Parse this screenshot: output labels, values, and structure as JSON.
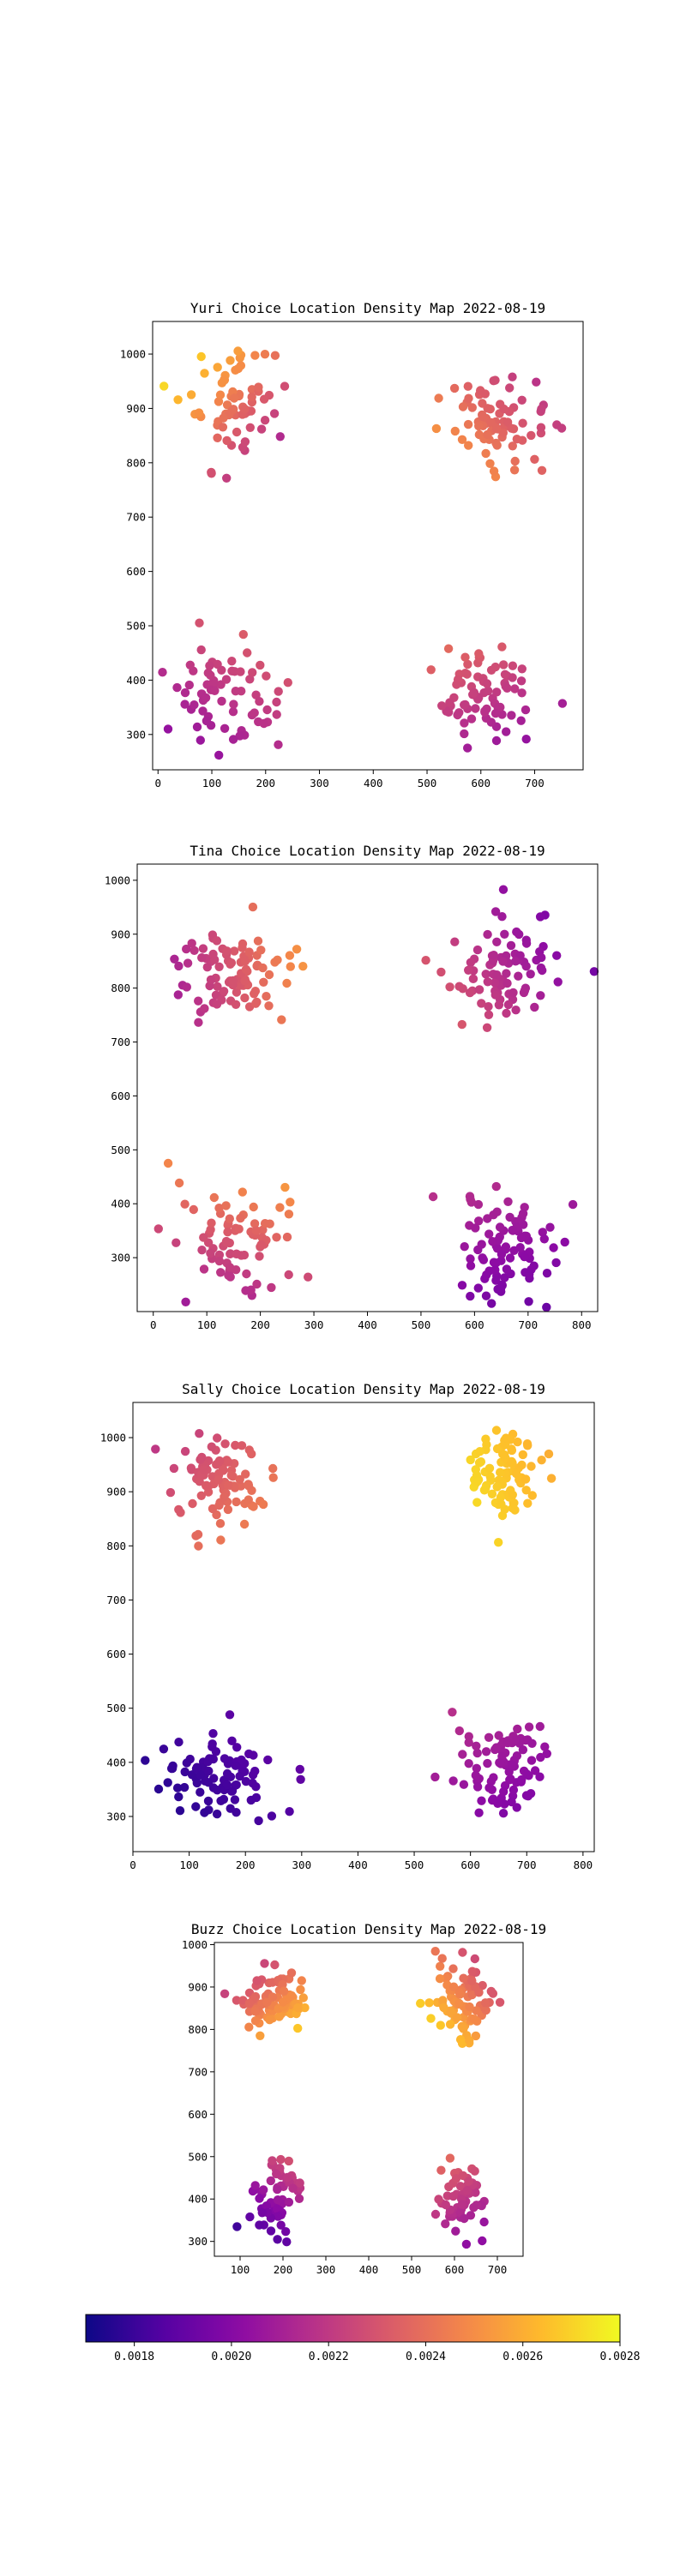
{
  "colorbar": {
    "colormap": "plasma",
    "range": [
      0.0017,
      0.0028
    ],
    "ticks": [
      "0.0018",
      "0.0020",
      "0.0022",
      "0.0024",
      "0.0026",
      "0.0028"
    ]
  },
  "chart_data": [
    {
      "type": "scatter",
      "title": "Yuri Choice Location Density Map 2022-08-19",
      "xlim": [
        -10,
        790
      ],
      "ylim": [
        235,
        1060
      ],
      "xticks": [
        0,
        100,
        200,
        300,
        400,
        500,
        600,
        700
      ],
      "yticks": [
        300,
        400,
        500,
        600,
        700,
        800,
        900,
        1000
      ],
      "clusters": [
        {
          "cx": 140,
          "cy": 900,
          "sx": 45,
          "sy": 55,
          "n": 70,
          "seed": 11,
          "c": [
            0.92,
            0.35
          ],
          "cdir": [
            0.7,
            -0.7
          ]
        },
        {
          "cx": 630,
          "cy": 880,
          "sx": 45,
          "sy": 40,
          "n": 80,
          "seed": 12,
          "c": [
            0.38,
            0.8
          ],
          "cdir": [
            -0.6,
            -0.5
          ]
        },
        {
          "cx": 130,
          "cy": 380,
          "sx": 50,
          "sy": 50,
          "n": 70,
          "seed": 13,
          "c": [
            0.3,
            0.6
          ],
          "cdir": [
            0.5,
            0.8
          ]
        },
        {
          "cx": 610,
          "cy": 370,
          "sx": 45,
          "sy": 45,
          "n": 80,
          "seed": 14,
          "c": [
            0.3,
            0.62
          ],
          "cdir": [
            -0.4,
            0.9
          ]
        }
      ]
    },
    {
      "type": "scatter",
      "title": "Tina Choice Location Density Map 2022-08-19",
      "xlim": [
        -30,
        830
      ],
      "ylim": [
        200,
        1030
      ],
      "xticks": [
        0,
        100,
        200,
        300,
        400,
        500,
        600,
        700,
        800
      ],
      "yticks": [
        300,
        400,
        500,
        600,
        700,
        800,
        900,
        1000
      ],
      "clusters": [
        {
          "cx": 160,
          "cy": 830,
          "sx": 55,
          "sy": 40,
          "n": 90,
          "seed": 21,
          "c": [
            0.3,
            0.82
          ],
          "cdir": [
            0.8,
            0.1
          ]
        },
        {
          "cx": 660,
          "cy": 830,
          "sx": 55,
          "sy": 45,
          "n": 90,
          "seed": 22,
          "c": [
            0.22,
            0.58
          ],
          "cdir": [
            -0.8,
            -0.4
          ]
        },
        {
          "cx": 160,
          "cy": 340,
          "sx": 50,
          "sy": 50,
          "n": 80,
          "seed": 23,
          "c": [
            0.35,
            0.78
          ],
          "cdir": [
            0.3,
            0.9
          ]
        },
        {
          "cx": 660,
          "cy": 320,
          "sx": 50,
          "sy": 50,
          "n": 90,
          "seed": 24,
          "c": [
            0.2,
            0.42
          ],
          "cdir": [
            -0.3,
            0.9
          ]
        }
      ]
    },
    {
      "type": "scatter",
      "title": "Sally Choice Location Density Map 2022-08-19",
      "xlim": [
        0,
        820
      ],
      "ylim": [
        235,
        1065
      ],
      "xticks": [
        0,
        100,
        200,
        300,
        400,
        500,
        600,
        700,
        800
      ],
      "yticks": [
        300,
        400,
        500,
        600,
        700,
        800,
        900,
        1000
      ],
      "clusters": [
        {
          "cx": 160,
          "cy": 920,
          "sx": 40,
          "sy": 40,
          "n": 90,
          "seed": 31,
          "c": [
            0.45,
            0.72
          ],
          "cdir": [
            0.6,
            -0.5
          ]
        },
        {
          "cx": 660,
          "cy": 930,
          "sx": 35,
          "sy": 40,
          "n": 90,
          "seed": 32,
          "c": [
            0.78,
            0.98
          ],
          "cdir": [
            -0.6,
            -0.2
          ]
        },
        {
          "cx": 150,
          "cy": 370,
          "sx": 50,
          "sy": 40,
          "n": 90,
          "seed": 33,
          "c": [
            0.02,
            0.2
          ],
          "cdir": [
            0.6,
            0.4
          ]
        },
        {
          "cx": 660,
          "cy": 390,
          "sx": 40,
          "sy": 45,
          "n": 90,
          "seed": 34,
          "c": [
            0.22,
            0.42
          ],
          "cdir": [
            -0.4,
            0.8
          ]
        }
      ]
    },
    {
      "type": "scatter",
      "title": "Buzz Choice Location Density Map 2022-08-19",
      "xlim": [
        40,
        760
      ],
      "ylim": [
        265,
        1005
      ],
      "xticks": [
        100,
        200,
        300,
        400,
        500,
        600,
        700
      ],
      "yticks": [
        300,
        400,
        500,
        600,
        700,
        800,
        900,
        1000
      ],
      "clusters": [
        {
          "cx": 180,
          "cy": 860,
          "sx": 40,
          "sy": 35,
          "n": 90,
          "seed": 41,
          "c": [
            0.45,
            0.95
          ],
          "cdir": [
            0.6,
            -0.6
          ]
        },
        {
          "cx": 620,
          "cy": 860,
          "sx": 35,
          "sy": 45,
          "n": 90,
          "seed": 42,
          "c": [
            0.45,
            0.98
          ],
          "cdir": [
            -0.6,
            -0.6
          ]
        },
        {
          "cx": 180,
          "cy": 400,
          "sx": 30,
          "sy": 45,
          "n": 60,
          "seed": 43,
          "c": [
            0.1,
            0.55
          ],
          "cdir": [
            0.4,
            0.9
          ]
        },
        {
          "cx": 620,
          "cy": 410,
          "sx": 30,
          "sy": 40,
          "n": 60,
          "seed": 44,
          "c": [
            0.3,
            0.62
          ],
          "cdir": [
            -0.4,
            0.9
          ]
        }
      ]
    }
  ]
}
